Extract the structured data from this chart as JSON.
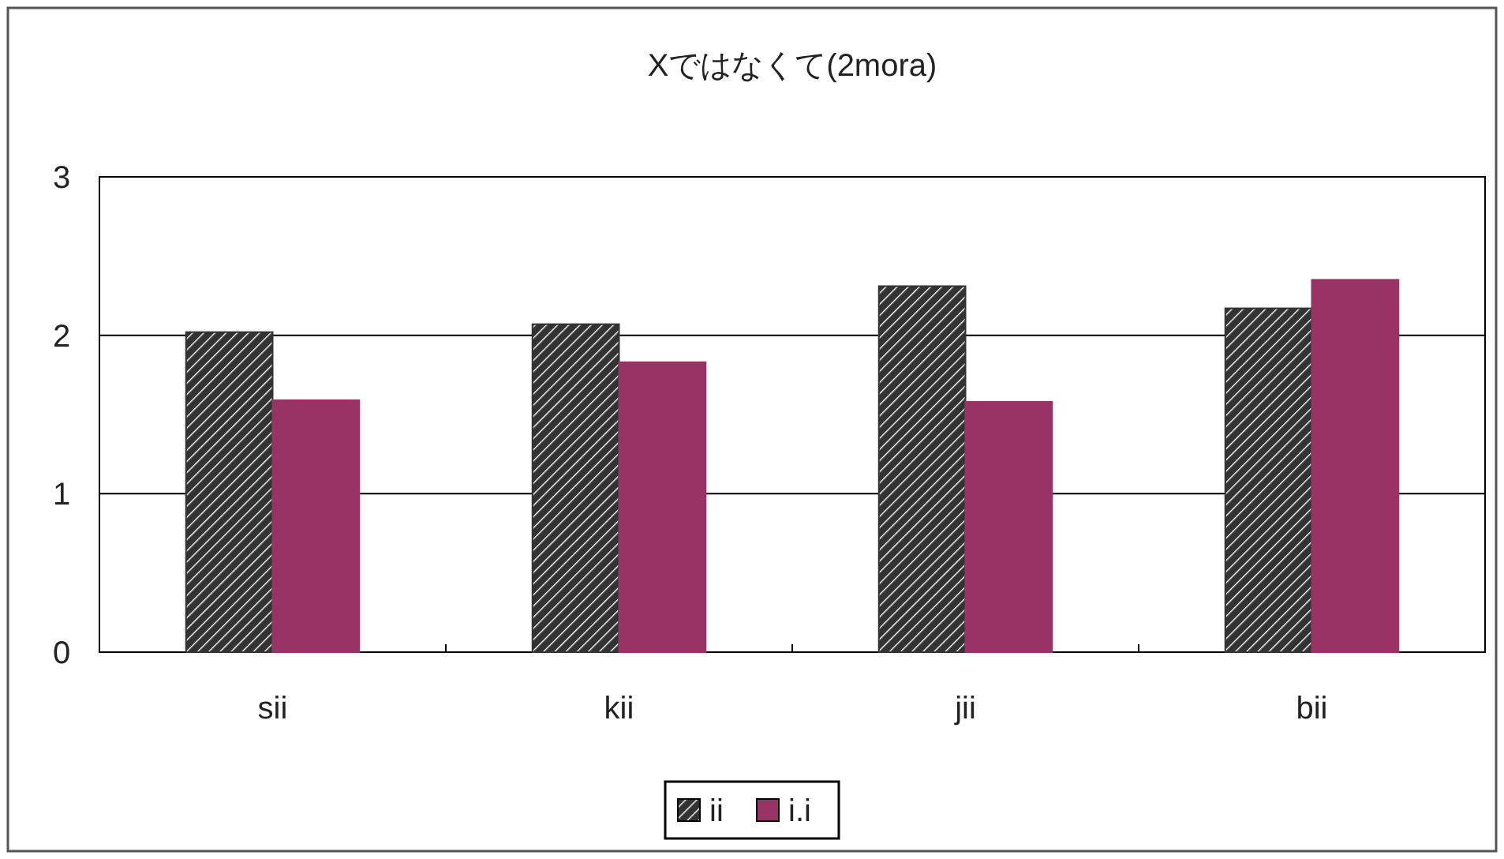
{
  "chart_data": {
    "type": "bar",
    "title": "Xではなくて(2mora)",
    "categories": [
      "sii",
      "kii",
      "jii",
      "bii"
    ],
    "series": [
      {
        "name": "ii",
        "color": "#333333",
        "values": [
          2.02,
          2.07,
          2.31,
          2.17
        ]
      },
      {
        "name": "i.i",
        "color": "#993366",
        "values": [
          1.59,
          1.83,
          1.58,
          2.35
        ]
      }
    ],
    "ylim": [
      0,
      3
    ],
    "yticks": [
      0,
      1,
      2,
      3
    ],
    "grid": "y",
    "legend": "bottom"
  }
}
